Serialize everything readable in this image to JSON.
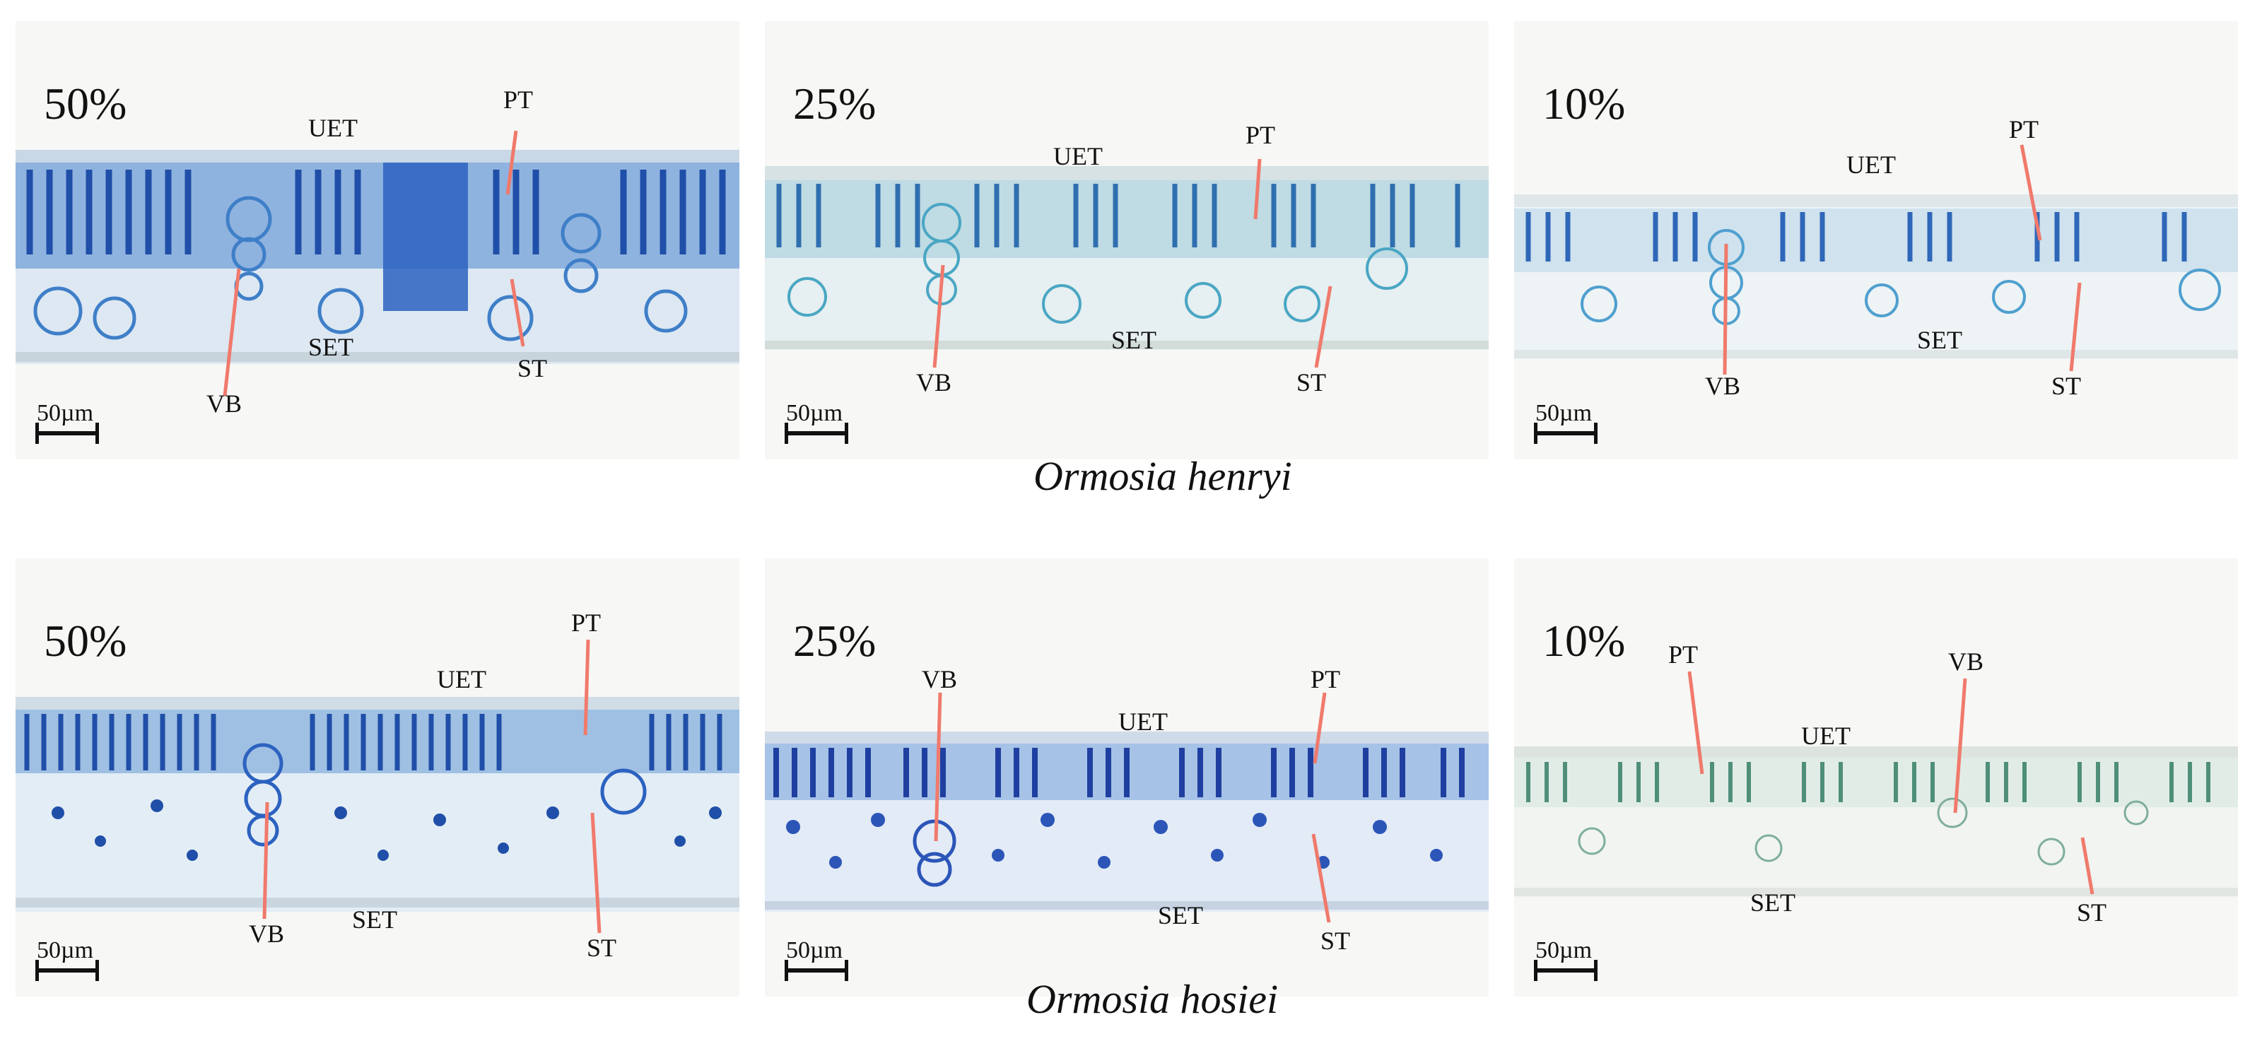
{
  "rows": [
    {
      "species": "Ormosia henryi",
      "panels": [
        {
          "shade": "50%",
          "labels": {
            "uet": "UET",
            "pt": "PT",
            "set": "SET",
            "st": "ST",
            "vb": "VB"
          },
          "scale": "50µm"
        },
        {
          "shade": "25%",
          "labels": {
            "uet": "UET",
            "pt": "PT",
            "set": "SET",
            "st": "ST",
            "vb": "VB"
          },
          "scale": "50µm"
        },
        {
          "shade": "10%",
          "labels": {
            "uet": "UET",
            "pt": "PT",
            "set": "SET",
            "st": "ST",
            "vb": "VB"
          },
          "scale": "50µm"
        }
      ]
    },
    {
      "species": "Ormosia hosiei",
      "panels": [
        {
          "shade": "50%",
          "labels": {
            "uet": "UET",
            "pt": "PT",
            "set": "SET",
            "st": "ST",
            "vb": "VB"
          },
          "scale": "50µm"
        },
        {
          "shade": "25%",
          "labels": {
            "uet": "UET",
            "pt": "PT",
            "set": "SET",
            "st": "ST",
            "vb": "VB"
          },
          "scale": "50µm"
        },
        {
          "shade": "10%",
          "labels": {
            "uet": "UET",
            "pt": "PT",
            "set": "SET",
            "st": "ST",
            "vb": "VB"
          },
          "scale": "50µm"
        }
      ]
    }
  ],
  "colors": {
    "pointer": "#f07a6c",
    "stain_dark": "#1f4fa8",
    "stain_mid": "#3f7fc8",
    "stain_light": "#6fb6cf",
    "stain_pale": "#8fbfa8",
    "background": "#f7f7f5"
  }
}
